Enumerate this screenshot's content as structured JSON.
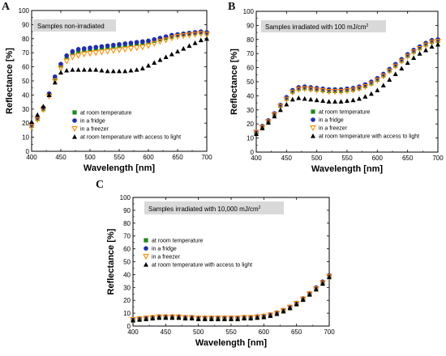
{
  "chart_data": [
    {
      "type": "scatter",
      "panel_label": "A",
      "title": "Samples non-irradiated",
      "xlabel": "Wavelength [nm]",
      "ylabel": "Reflectance [%]",
      "xlim": [
        400,
        700
      ],
      "ylim": [
        0,
        100
      ],
      "xticks": [
        400,
        450,
        500,
        550,
        600,
        650,
        700
      ],
      "yticks": [
        0,
        10,
        20,
        30,
        40,
        50,
        60,
        70,
        80,
        90,
        100
      ],
      "x": [
        400,
        410,
        420,
        430,
        440,
        450,
        460,
        470,
        480,
        490,
        500,
        510,
        520,
        530,
        540,
        550,
        560,
        570,
        580,
        590,
        600,
        610,
        620,
        630,
        640,
        650,
        660,
        670,
        680,
        690,
        700
      ],
      "legend_position": "bottom-right",
      "series": [
        {
          "name": "at room temperature",
          "color": "#1a8a1a",
          "marker": "square",
          "values": [
            18,
            23,
            30,
            40,
            52,
            61,
            67,
            70,
            71,
            72,
            72.5,
            73,
            73.5,
            74,
            74.5,
            75,
            75.5,
            76,
            76.5,
            77,
            77.5,
            78.5,
            79.5,
            80.5,
            81.5,
            82.5,
            83,
            83.5,
            84,
            84.5,
            84
          ]
        },
        {
          "name": "in a fridge",
          "color": "#1f2db5",
          "marker": "circle",
          "values": [
            18.5,
            24,
            31,
            41,
            53,
            62,
            68,
            71,
            72.5,
            73,
            73.5,
            74,
            74.5,
            75,
            75.5,
            76,
            76.5,
            77,
            77.5,
            78,
            78.5,
            79.5,
            80.5,
            81.5,
            82.5,
            83,
            83.5,
            84,
            84.5,
            85,
            84.5
          ]
        },
        {
          "name": "in a freezer",
          "color": "#ff8c00",
          "marker": "triangle-down",
          "values": [
            17.5,
            22.5,
            29.5,
            39,
            50,
            59,
            64,
            67,
            68,
            69,
            69.5,
            70,
            70.5,
            71,
            71.5,
            72,
            72.5,
            73,
            73.5,
            74,
            75,
            76.5,
            78,
            79,
            80.5,
            81.5,
            82,
            82.5,
            83,
            83.5,
            83
          ]
        },
        {
          "name": "at room temperature with access to light",
          "color": "#000000",
          "marker": "triangle-up",
          "values": [
            21,
            26,
            32,
            40,
            49,
            56,
            57.5,
            58,
            58,
            58,
            58,
            58,
            57.5,
            57,
            57,
            57,
            57,
            57.5,
            58,
            59,
            61,
            63,
            65,
            67,
            69,
            71,
            73,
            75,
            77,
            79,
            80
          ]
        }
      ]
    },
    {
      "type": "scatter",
      "panel_label": "B",
      "title": "Samples irradiated with 100 mJ/cm",
      "title_superscript": "2",
      "xlabel": "Wavelength [nm]",
      "ylabel": "Reflectance [%]",
      "xlim": [
        400,
        700
      ],
      "ylim": [
        0,
        100
      ],
      "xticks": [
        400,
        450,
        500,
        550,
        600,
        650,
        700
      ],
      "yticks": [
        0,
        10,
        20,
        30,
        40,
        50,
        60,
        70,
        80,
        90,
        100
      ],
      "x": [
        400,
        410,
        420,
        430,
        440,
        450,
        460,
        470,
        480,
        490,
        500,
        510,
        520,
        530,
        540,
        550,
        560,
        570,
        580,
        590,
        600,
        610,
        620,
        630,
        640,
        650,
        660,
        670,
        680,
        690,
        700
      ],
      "legend_position": "bottom-right",
      "series": [
        {
          "name": "at room temperature",
          "color": "#1a8a1a",
          "marker": "square",
          "values": [
            14,
            18,
            22,
            27,
            33,
            38,
            43,
            45,
            45.5,
            45,
            44.5,
            44,
            43.5,
            43.5,
            43.5,
            44,
            44.5,
            45.5,
            47,
            49,
            51.5,
            54.5,
            58,
            61.5,
            65,
            68.5,
            71.5,
            74,
            76.5,
            78.5,
            79
          ]
        },
        {
          "name": "in a fridge",
          "color": "#1f2db5",
          "marker": "circle",
          "values": [
            14.5,
            18.5,
            22.5,
            27.5,
            33.5,
            39,
            44,
            46,
            46.5,
            46,
            45.5,
            45,
            44.5,
            44.5,
            44.5,
            45,
            45.5,
            46.5,
            48,
            50,
            52.5,
            55.5,
            59,
            62.5,
            66,
            69.5,
            72.5,
            75,
            77.5,
            79.5,
            80
          ]
        },
        {
          "name": "in a freezer",
          "color": "#ff8c00",
          "marker": "triangle-down",
          "values": [
            14,
            17.5,
            21.5,
            26.5,
            32.5,
            37.5,
            42.5,
            44.5,
            45,
            44.5,
            44,
            43.5,
            43,
            43,
            43,
            43.5,
            44,
            45,
            46.5,
            48.5,
            51,
            54,
            57.5,
            61,
            64.5,
            68,
            71,
            73.5,
            76,
            78,
            78.5
          ]
        },
        {
          "name": "at room temperature with access to light",
          "color": "#000000",
          "marker": "triangle-up",
          "values": [
            13,
            17,
            21,
            25.5,
            30,
            34,
            37.5,
            38.5,
            38,
            37.5,
            37,
            36.5,
            36,
            36,
            36,
            36.5,
            37,
            38,
            39.5,
            41.5,
            44,
            47.5,
            51.5,
            55.5,
            59.5,
            63.5,
            67,
            70,
            72.5,
            75,
            76.5
          ]
        }
      ]
    },
    {
      "type": "scatter",
      "panel_label": "C",
      "title": "Samples irradiated with 10,000 mJ/cm",
      "title_superscript": "2",
      "xlabel": "Wavelength [nm]",
      "ylabel": "Reflectance [%]",
      "xlim": [
        400,
        700
      ],
      "ylim": [
        0,
        100
      ],
      "xticks": [
        400,
        450,
        500,
        550,
        600,
        650,
        700
      ],
      "yticks": [
        0,
        10,
        20,
        30,
        40,
        50,
        60,
        70,
        80,
        90,
        100
      ],
      "x": [
        400,
        410,
        420,
        430,
        440,
        450,
        460,
        470,
        480,
        490,
        500,
        510,
        520,
        530,
        540,
        550,
        560,
        570,
        580,
        590,
        600,
        610,
        620,
        630,
        640,
        650,
        660,
        670,
        680,
        690,
        700
      ],
      "legend_position": "upper-left",
      "series": [
        {
          "name": "at room temperature",
          "color": "#1a8a1a",
          "marker": "square",
          "values": [
            5,
            5.5,
            6,
            6.5,
            7,
            7,
            7,
            7,
            6.5,
            6.5,
            6,
            6,
            6,
            6,
            6,
            6,
            6,
            6.5,
            6.5,
            7,
            7.5,
            8.5,
            10,
            12,
            14.5,
            17.5,
            21,
            25,
            29.5,
            34,
            39
          ]
        },
        {
          "name": "in a fridge",
          "color": "#1f2db5",
          "marker": "circle",
          "values": [
            5.5,
            6,
            6.5,
            7,
            7.5,
            7.5,
            7.5,
            7.5,
            7,
            7,
            6.5,
            6.5,
            6.5,
            6.5,
            6.5,
            6.5,
            6.5,
            7,
            7,
            7.5,
            8,
            9,
            10.5,
            12.5,
            15,
            18,
            21.5,
            25.5,
            30,
            34.5,
            39.5
          ]
        },
        {
          "name": "in a freezer",
          "color": "#ff8c00",
          "marker": "triangle-down",
          "values": [
            5,
            5.5,
            6,
            6.5,
            7,
            7,
            7,
            7,
            6.5,
            6.5,
            6,
            6,
            6,
            6,
            6,
            6,
            6,
            6.5,
            6.5,
            7,
            7.5,
            8.5,
            10,
            12,
            14.5,
            17.5,
            21,
            25,
            29,
            33.5,
            38.5
          ]
        },
        {
          "name": "at room temperature with access to light",
          "color": "#000000",
          "marker": "triangle-up",
          "values": [
            4.5,
            5,
            5.5,
            6,
            6.5,
            6.5,
            6.5,
            6.5,
            6,
            6,
            5.5,
            5.5,
            5.5,
            5.5,
            5.5,
            5.5,
            5.5,
            6,
            6,
            6.5,
            7,
            8,
            9.5,
            11.5,
            14,
            17,
            20.5,
            24.5,
            28.5,
            33,
            38
          ]
        }
      ]
    }
  ]
}
